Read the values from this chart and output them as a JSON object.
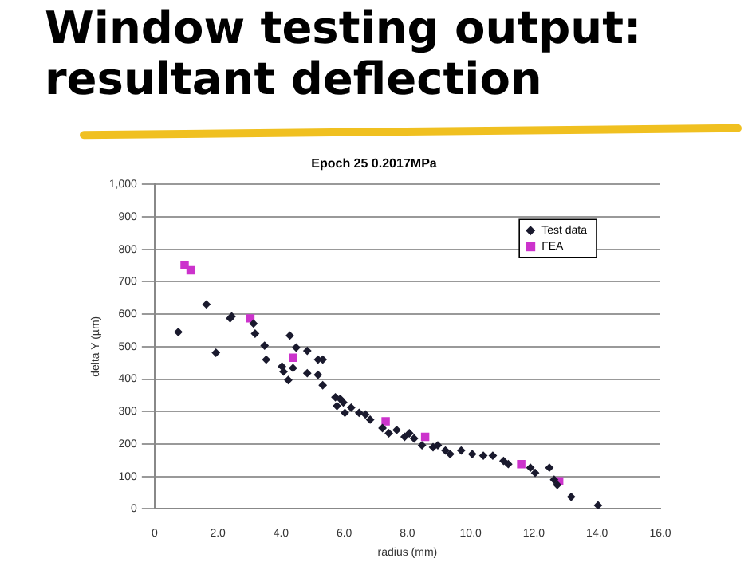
{
  "chart_data": {
    "type": "scatter",
    "title": "Window testing output: resultant deflection",
    "subtitle": "Epoch 25 0.2017MPa",
    "xlabel": "radius (mm)",
    "ylabel": "delta Y (µm)",
    "xlim": [
      0,
      16
    ],
    "xticks": [
      0,
      {
        "value": 2,
        "label": "2.0"
      },
      {
        "value": 4,
        "label": "4.0"
      },
      {
        "value": 6,
        "label": "6.0"
      },
      {
        "value": 8,
        "label": "8.0"
      },
      {
        "value": 10,
        "label": "10.0"
      },
      {
        "value": 12,
        "label": "12.0"
      },
      {
        "value": 14,
        "label": "14.0"
      },
      {
        "value": 16,
        "label": "16.0"
      }
    ],
    "ylim": [
      0,
      1000
    ],
    "yticks": [
      0,
      100,
      200,
      300,
      400,
      500,
      600,
      700,
      800,
      900,
      {
        "value": 1000,
        "label": "1,000"
      }
    ],
    "grid": "y",
    "legend": "top right",
    "series": [
      {
        "name": "Test data",
        "color": "#1a1a2e",
        "marker": "diamond",
        "x": [
          0.75,
          1.64,
          1.94,
          2.39,
          2.44,
          3.13,
          3.18,
          3.48,
          3.53,
          4.03,
          4.08,
          4.23,
          4.28,
          4.38,
          4.48,
          4.83,
          4.83,
          5.17,
          5.32,
          5.17,
          5.32,
          5.72,
          5.77,
          5.87,
          5.97,
          6.02,
          6.22,
          6.47,
          6.67,
          6.82,
          7.21,
          7.41,
          7.66,
          7.91,
          8.06,
          8.21,
          8.46,
          8.81,
          8.96,
          9.2,
          9.35,
          9.7,
          10.05,
          10.4,
          10.7,
          11.04,
          11.19,
          11.89,
          12.04,
          12.49,
          12.64,
          12.74,
          13.18,
          14.03
        ],
        "values": [
          545,
          630,
          481,
          587,
          593,
          571,
          540,
          503,
          460,
          439,
          423,
          397,
          534,
          434,
          497,
          487,
          418,
          460,
          460,
          413,
          381,
          344,
          317,
          339,
          328,
          296,
          312,
          296,
          291,
          275,
          249,
          233,
          243,
          222,
          233,
          217,
          196,
          190,
          196,
          180,
          169,
          180,
          169,
          164,
          164,
          148,
          138,
          127,
          111,
          127,
          90,
          74,
          37,
          11
        ]
      },
      {
        "name": "FEA",
        "color": "#cc33cc",
        "marker": "square",
        "x": [
          0.95,
          1.14,
          3.03,
          4.38,
          7.31,
          8.56,
          11.6,
          12.8
        ],
        "values": [
          751,
          735,
          587,
          466,
          270,
          222,
          138,
          85
        ]
      }
    ]
  }
}
